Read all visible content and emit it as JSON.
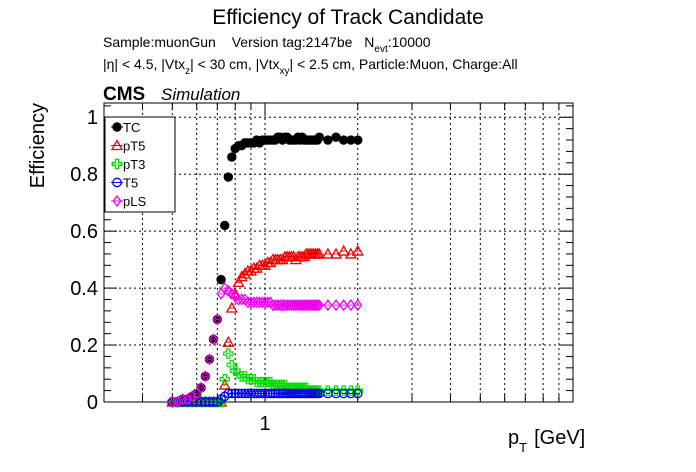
{
  "chart_data": {
    "type": "scatter",
    "title": "Efficiency of Track Candidate",
    "info_line1": {
      "sample": "Sample:muonGun",
      "version": "Version tag:2147be",
      "nevt_prefix": "N",
      "nevt_sub": "evt",
      "nevt_value": ":10000"
    },
    "info_line2": {
      "eta_cut": "|η| < 4.5, |Vtx",
      "vtxz_sub": "z",
      "vtxz_cut": "| < 30 cm, |Vtx",
      "vtxxy_sub": "xy",
      "rest": "| < 2.5 cm, Particle:Muon, Charge:All"
    },
    "cms_label": "CMS",
    "simulation_label": "Simulation",
    "ylabel": "Efficiency",
    "xlabel_p": "p",
    "xlabel_sub": "T",
    "xlabel_unit": "[GeV]",
    "x_scale": "log",
    "xlim": [
      0.3,
      10
    ],
    "ylim": [
      0,
      1.05
    ],
    "yticks": [
      0,
      0.2,
      0.4,
      0.6,
      0.8,
      1
    ],
    "ytick_labels": [
      "0",
      "0.2",
      "0.4",
      "0.6",
      "0.8",
      "1"
    ],
    "xtick_labels": [
      {
        "value": 1,
        "label": "1"
      }
    ],
    "grid": true,
    "legend_position": "top-left",
    "series": [
      {
        "name": "TC",
        "color": "#000000",
        "marker": "filled-circle",
        "x": [
          0.5,
          0.52,
          0.54,
          0.56,
          0.58,
          0.6,
          0.62,
          0.64,
          0.66,
          0.68,
          0.7,
          0.72,
          0.74,
          0.76,
          0.78,
          0.8,
          0.82,
          0.84,
          0.86,
          0.88,
          0.9,
          0.92,
          0.94,
          0.96,
          0.98,
          1.0,
          1.02,
          1.04,
          1.06,
          1.08,
          1.1,
          1.12,
          1.14,
          1.16,
          1.18,
          1.2,
          1.22,
          1.24,
          1.26,
          1.28,
          1.3,
          1.32,
          1.34,
          1.36,
          1.38,
          1.4,
          1.42,
          1.44,
          1.46,
          1.48,
          1.5,
          1.6,
          1.7,
          1.8,
          1.9,
          2.0
        ],
        "y": [
          0.0,
          0.0,
          0.01,
          0.01,
          0.02,
          0.03,
          0.05,
          0.09,
          0.15,
          0.22,
          0.29,
          0.43,
          0.62,
          0.79,
          0.86,
          0.89,
          0.9,
          0.9,
          0.91,
          0.91,
          0.91,
          0.91,
          0.92,
          0.91,
          0.92,
          0.92,
          0.92,
          0.92,
          0.92,
          0.92,
          0.93,
          0.93,
          0.92,
          0.93,
          0.93,
          0.92,
          0.92,
          0.92,
          0.92,
          0.93,
          0.92,
          0.93,
          0.92,
          0.92,
          0.92,
          0.92,
          0.92,
          0.92,
          0.92,
          0.92,
          0.93,
          0.92,
          0.93,
          0.92,
          0.92,
          0.92
        ]
      },
      {
        "name": "pT5",
        "color": "#ee0000",
        "marker": "open-triangle",
        "x": [
          0.5,
          0.52,
          0.54,
          0.56,
          0.58,
          0.6,
          0.62,
          0.64,
          0.66,
          0.68,
          0.7,
          0.72,
          0.74,
          0.76,
          0.78,
          0.8,
          0.82,
          0.84,
          0.86,
          0.88,
          0.9,
          0.92,
          0.94,
          0.96,
          0.98,
          1.0,
          1.02,
          1.04,
          1.06,
          1.08,
          1.1,
          1.12,
          1.14,
          1.16,
          1.18,
          1.2,
          1.22,
          1.24,
          1.26,
          1.28,
          1.3,
          1.32,
          1.34,
          1.36,
          1.38,
          1.4,
          1.42,
          1.44,
          1.46,
          1.48,
          1.5,
          1.6,
          1.7,
          1.8,
          1.9,
          2.0
        ],
        "y": [
          0.0,
          0.0,
          0.0,
          0.0,
          0.0,
          0.0,
          0.0,
          0.0,
          0.0,
          0.0,
          0.0,
          0.0,
          0.06,
          0.21,
          0.33,
          0.38,
          0.42,
          0.44,
          0.45,
          0.46,
          0.46,
          0.47,
          0.47,
          0.48,
          0.48,
          0.48,
          0.49,
          0.49,
          0.5,
          0.5,
          0.5,
          0.5,
          0.5,
          0.51,
          0.51,
          0.51,
          0.51,
          0.51,
          0.5,
          0.51,
          0.51,
          0.51,
          0.51,
          0.52,
          0.52,
          0.52,
          0.52,
          0.52,
          0.52,
          0.52,
          0.52,
          0.52,
          0.52,
          0.53,
          0.52,
          0.53
        ]
      },
      {
        "name": "pT3",
        "color": "#00dd00",
        "marker": "open-cross",
        "x": [
          0.5,
          0.52,
          0.54,
          0.56,
          0.58,
          0.6,
          0.62,
          0.64,
          0.66,
          0.68,
          0.7,
          0.72,
          0.74,
          0.76,
          0.78,
          0.8,
          0.82,
          0.84,
          0.86,
          0.88,
          0.9,
          0.92,
          0.94,
          0.96,
          0.98,
          1.0,
          1.02,
          1.04,
          1.06,
          1.08,
          1.1,
          1.12,
          1.14,
          1.16,
          1.18,
          1.2,
          1.22,
          1.24,
          1.26,
          1.28,
          1.3,
          1.32,
          1.34,
          1.36,
          1.38,
          1.4,
          1.42,
          1.44,
          1.46,
          1.48,
          1.5,
          1.6,
          1.7,
          1.8,
          1.9,
          2.0
        ],
        "y": [
          0.0,
          0.0,
          0.0,
          0.0,
          0.0,
          0.0,
          0.0,
          0.0,
          0.0,
          0.0,
          0.0,
          0.0,
          0.08,
          0.17,
          0.13,
          0.11,
          0.1,
          0.09,
          0.09,
          0.08,
          0.08,
          0.08,
          0.07,
          0.07,
          0.07,
          0.07,
          0.07,
          0.07,
          0.06,
          0.06,
          0.06,
          0.06,
          0.06,
          0.06,
          0.05,
          0.05,
          0.05,
          0.05,
          0.05,
          0.05,
          0.05,
          0.05,
          0.05,
          0.05,
          0.04,
          0.04,
          0.04,
          0.04,
          0.04,
          0.04,
          0.04,
          0.04,
          0.04,
          0.04,
          0.04,
          0.04
        ]
      },
      {
        "name": "T5",
        "color": "#0000ee",
        "marker": "open-circle",
        "x": [
          0.5,
          0.52,
          0.54,
          0.56,
          0.58,
          0.6,
          0.62,
          0.64,
          0.66,
          0.68,
          0.7,
          0.72,
          0.74,
          0.76,
          0.78,
          0.8,
          0.82,
          0.84,
          0.86,
          0.88,
          0.9,
          0.92,
          0.94,
          0.96,
          0.98,
          1.0,
          1.02,
          1.04,
          1.06,
          1.08,
          1.1,
          1.12,
          1.14,
          1.16,
          1.18,
          1.2,
          1.22,
          1.24,
          1.26,
          1.28,
          1.3,
          1.32,
          1.34,
          1.36,
          1.38,
          1.4,
          1.42,
          1.44,
          1.46,
          1.48,
          1.5,
          1.6,
          1.7,
          1.8,
          1.9,
          2.0
        ],
        "y": [
          0.0,
          0.0,
          0.0,
          0.0,
          0.0,
          0.0,
          0.0,
          0.0,
          0.0,
          0.0,
          0.0,
          0.01,
          0.02,
          0.03,
          0.03,
          0.03,
          0.03,
          0.03,
          0.03,
          0.03,
          0.03,
          0.03,
          0.03,
          0.03,
          0.03,
          0.03,
          0.03,
          0.03,
          0.03,
          0.03,
          0.03,
          0.03,
          0.03,
          0.03,
          0.03,
          0.03,
          0.03,
          0.03,
          0.03,
          0.03,
          0.03,
          0.03,
          0.03,
          0.03,
          0.03,
          0.03,
          0.03,
          0.03,
          0.03,
          0.03,
          0.03,
          0.03,
          0.03,
          0.03,
          0.03,
          0.03
        ]
      },
      {
        "name": "pLS",
        "color": "#ee00ee",
        "marker": "open-diamond",
        "x": [
          0.5,
          0.52,
          0.54,
          0.56,
          0.58,
          0.6,
          0.62,
          0.64,
          0.66,
          0.68,
          0.7,
          0.72,
          0.74,
          0.76,
          0.78,
          0.8,
          0.82,
          0.84,
          0.86,
          0.88,
          0.9,
          0.92,
          0.94,
          0.96,
          0.98,
          1.0,
          1.02,
          1.04,
          1.06,
          1.08,
          1.1,
          1.12,
          1.14,
          1.16,
          1.18,
          1.2,
          1.22,
          1.24,
          1.26,
          1.28,
          1.3,
          1.32,
          1.34,
          1.36,
          1.38,
          1.4,
          1.42,
          1.44,
          1.46,
          1.48,
          1.5,
          1.6,
          1.7,
          1.8,
          1.9,
          2.0
        ],
        "y": [
          0.0,
          0.0,
          0.01,
          0.01,
          0.02,
          0.03,
          0.05,
          0.09,
          0.15,
          0.22,
          0.29,
          0.38,
          0.4,
          0.39,
          0.38,
          0.37,
          0.36,
          0.36,
          0.36,
          0.35,
          0.35,
          0.35,
          0.35,
          0.35,
          0.35,
          0.35,
          0.35,
          0.35,
          0.34,
          0.34,
          0.34,
          0.34,
          0.34,
          0.34,
          0.34,
          0.34,
          0.34,
          0.34,
          0.34,
          0.34,
          0.34,
          0.34,
          0.34,
          0.34,
          0.34,
          0.34,
          0.34,
          0.34,
          0.34,
          0.34,
          0.34,
          0.34,
          0.34,
          0.34,
          0.34,
          0.34
        ]
      }
    ]
  }
}
